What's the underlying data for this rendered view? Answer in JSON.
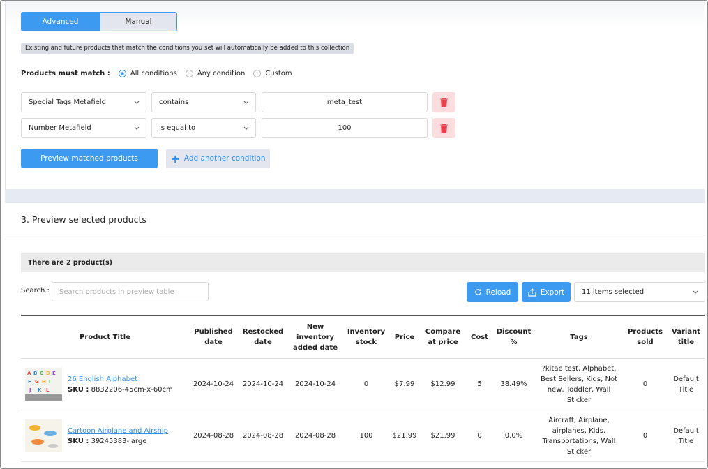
{
  "tabs": [
    "Advanced",
    "Manual"
  ],
  "info": "Existing and future products that match the conditions you set will automatically be added to this collection",
  "match": {
    "label": "Products must match :",
    "options": [
      "All conditions",
      "Any condition",
      "Custom"
    ]
  },
  "conditions": [
    {
      "field": "Special Tags Metafield",
      "operator": "contains",
      "value": "meta_test"
    },
    {
      "field": "Number Metafield",
      "operator": "is equal to",
      "value": "100"
    }
  ],
  "buttons": {
    "preview": "Preview matched products",
    "add": "Add another condition"
  },
  "section_title": "3. Preview selected products",
  "count": "There are 2 product(s)",
  "search": {
    "label": "Search :",
    "placeholder": "Search products in preview table"
  },
  "toolbar": {
    "reload": "Reload",
    "export": "Export",
    "columns": "11 items selected"
  },
  "table": {
    "headers": [
      "Product Title",
      "Published date",
      "Restocked date",
      "New inventory added date",
      "Inventory stock",
      "Price",
      "Compare at price",
      "Cost",
      "Discount %",
      "Tags",
      "Products sold",
      "Variant title"
    ],
    "sku_label": "SKU :",
    "rows": [
      {
        "title": "26 English Alphabet",
        "sku": "8832206-45cm-x-60cm",
        "published": "2024-10-24",
        "restocked": "2024-10-24",
        "new_inventory": "2024-10-24",
        "stock": 0,
        "price": "$7.99",
        "compare": "$12.99",
        "cost": 5,
        "discount": "38.49%",
        "tags": "?kitae test, Alphabet, Best Sellers, Kids, Not new, Toddler, Wall Sticker",
        "sold": 0,
        "variant": "Default Title"
      },
      {
        "title": "Cartoon Airplane and Airship",
        "sku": "39245383-large",
        "published": "2024-08-28",
        "restocked": "2024-08-28",
        "new_inventory": "2024-08-28",
        "stock": 100,
        "price": "$21.99",
        "compare": "$21.99",
        "cost": 0,
        "discount": "0.0%",
        "tags": "Aircraft, Airplane, airplanes, Kids, Transportations, Wall Sticker",
        "sold": 0,
        "variant": "Default Title"
      }
    ]
  }
}
